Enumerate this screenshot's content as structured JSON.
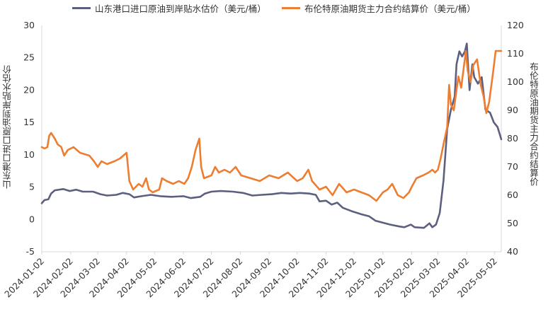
{
  "chart_data": {
    "type": "line",
    "title": "",
    "legend_position": "top",
    "grid": false,
    "x_tick_labels": [
      "2024-01-02",
      "2024-02-02",
      "2024-03-02",
      "2024-04-02",
      "2024-05-02",
      "2024-06-02",
      "2024-07-02",
      "2024-08-02",
      "2024-09-02",
      "2024-10-02",
      "2024-11-02",
      "2024-12-02",
      "2025-01-02",
      "2025-02-02",
      "2025-03-02",
      "2025-04-02",
      "2025-05-02"
    ],
    "x_range": [
      "2024-01-02",
      "2025-05-09"
    ],
    "left_axis": {
      "label": "山东港口进口原油到岸贴水估价",
      "range": [
        -5,
        30
      ],
      "ticks": [
        -5,
        0,
        5,
        10,
        15,
        20,
        25,
        30
      ]
    },
    "right_axis": {
      "label": "布伦特原油期货主力合约结算价",
      "range": [
        40,
        120
      ],
      "ticks": [
        40,
        50,
        60,
        70,
        80,
        90,
        100,
        110,
        120
      ]
    },
    "series": [
      {
        "name": "山东港口进口原油到岸贴水估价（美元/桶）",
        "axis": "left",
        "color": "#5d5f7e",
        "points": [
          [
            "2024-01-02",
            2.5
          ],
          [
            "2024-01-05",
            3.0
          ],
          [
            "2024-01-09",
            3.1
          ],
          [
            "2024-01-12",
            4.0
          ],
          [
            "2024-01-16",
            4.5
          ],
          [
            "2024-01-25",
            4.7
          ],
          [
            "2024-02-01",
            4.4
          ],
          [
            "2024-02-08",
            4.6
          ],
          [
            "2024-02-15",
            4.3
          ],
          [
            "2024-02-26",
            4.3
          ],
          [
            "2024-03-05",
            3.9
          ],
          [
            "2024-03-12",
            3.7
          ],
          [
            "2024-03-22",
            3.8
          ],
          [
            "2024-03-29",
            4.1
          ],
          [
            "2024-04-05",
            3.9
          ],
          [
            "2024-04-10",
            3.4
          ],
          [
            "2024-04-18",
            3.6
          ],
          [
            "2024-04-28",
            3.8
          ],
          [
            "2024-05-08",
            3.6
          ],
          [
            "2024-05-20",
            3.5
          ],
          [
            "2024-06-02",
            3.6
          ],
          [
            "2024-06-10",
            3.3
          ],
          [
            "2024-06-20",
            3.5
          ],
          [
            "2024-06-25",
            4.0
          ],
          [
            "2024-07-02",
            4.3
          ],
          [
            "2024-07-12",
            4.4
          ],
          [
            "2024-07-25",
            4.3
          ],
          [
            "2024-08-05",
            4.1
          ],
          [
            "2024-08-15",
            3.7
          ],
          [
            "2024-08-25",
            3.8
          ],
          [
            "2024-09-05",
            3.9
          ],
          [
            "2024-09-15",
            4.1
          ],
          [
            "2024-09-25",
            4.0
          ],
          [
            "2024-10-05",
            4.1
          ],
          [
            "2024-10-15",
            4.0
          ],
          [
            "2024-10-22",
            3.8
          ],
          [
            "2024-10-26",
            2.8
          ],
          [
            "2024-11-02",
            2.9
          ],
          [
            "2024-11-08",
            2.3
          ],
          [
            "2024-11-14",
            2.6
          ],
          [
            "2024-11-20",
            1.8
          ],
          [
            "2024-12-01",
            1.2
          ],
          [
            "2024-12-10",
            0.8
          ],
          [
            "2024-12-18",
            0.5
          ],
          [
            "2024-12-25",
            -0.2
          ],
          [
            "2025-01-02",
            -0.5
          ],
          [
            "2025-01-10",
            -0.8
          ],
          [
            "2025-01-20",
            -1.1
          ],
          [
            "2025-01-25",
            -1.2
          ],
          [
            "2025-02-01",
            -0.8
          ],
          [
            "2025-02-05",
            -1.2
          ],
          [
            "2025-02-15",
            -1.3
          ],
          [
            "2025-02-21",
            -0.6
          ],
          [
            "2025-02-24",
            -1.2
          ],
          [
            "2025-02-28",
            -0.8
          ],
          [
            "2025-03-04",
            1.0
          ],
          [
            "2025-03-08",
            6.0
          ],
          [
            "2025-03-12",
            14.0
          ],
          [
            "2025-03-16",
            17.0
          ],
          [
            "2025-03-20",
            19.0
          ],
          [
            "2025-03-22",
            24.0
          ],
          [
            "2025-03-25",
            26.0
          ],
          [
            "2025-03-28",
            25.2
          ],
          [
            "2025-03-31",
            26.0
          ],
          [
            "2025-04-02",
            27.2
          ],
          [
            "2025-04-05",
            20.0
          ],
          [
            "2025-04-08",
            24.0
          ],
          [
            "2025-04-10",
            22.0
          ],
          [
            "2025-04-14",
            21.0
          ],
          [
            "2025-04-18",
            22.0
          ],
          [
            "2025-04-22",
            17.0
          ],
          [
            "2025-04-27",
            16.5
          ],
          [
            "2025-05-01",
            15.0
          ],
          [
            "2025-05-05",
            14.3
          ],
          [
            "2025-05-09",
            12.4
          ]
        ]
      },
      {
        "name": "布伦特原油期货主力合约结算价（美元/桶）",
        "axis": "right",
        "color": "#ed7d31",
        "points": [
          [
            "2024-01-02",
            77
          ],
          [
            "2024-01-05",
            76.5
          ],
          [
            "2024-01-08",
            77
          ],
          [
            "2024-01-10",
            81
          ],
          [
            "2024-01-12",
            82
          ],
          [
            "2024-01-16",
            80
          ],
          [
            "2024-01-19",
            78
          ],
          [
            "2024-01-23",
            77
          ],
          [
            "2024-01-26",
            74
          ],
          [
            "2024-01-30",
            76
          ],
          [
            "2024-02-05",
            77
          ],
          [
            "2024-02-12",
            75
          ],
          [
            "2024-02-22",
            74
          ],
          [
            "2024-02-27",
            72
          ],
          [
            "2024-03-02",
            70
          ],
          [
            "2024-03-06",
            72
          ],
          [
            "2024-03-12",
            71
          ],
          [
            "2024-03-20",
            72
          ],
          [
            "2024-03-26",
            73
          ],
          [
            "2024-04-02",
            75
          ],
          [
            "2024-04-05",
            65
          ],
          [
            "2024-04-09",
            62
          ],
          [
            "2024-04-15",
            64
          ],
          [
            "2024-04-19",
            63
          ],
          [
            "2024-04-23",
            66
          ],
          [
            "2024-04-26",
            62
          ],
          [
            "2024-04-30",
            61
          ],
          [
            "2024-05-07",
            62
          ],
          [
            "2024-05-10",
            66
          ],
          [
            "2024-05-15",
            65
          ],
          [
            "2024-05-22",
            64
          ],
          [
            "2024-05-28",
            65
          ],
          [
            "2024-06-03",
            64
          ],
          [
            "2024-06-07",
            66
          ],
          [
            "2024-06-11",
            70
          ],
          [
            "2024-06-15",
            76
          ],
          [
            "2024-06-19",
            80
          ],
          [
            "2024-06-21",
            70
          ],
          [
            "2024-06-24",
            66
          ],
          [
            "2024-07-02",
            67
          ],
          [
            "2024-07-06",
            70
          ],
          [
            "2024-07-10",
            68
          ],
          [
            "2024-07-16",
            69
          ],
          [
            "2024-07-22",
            68
          ],
          [
            "2024-07-28",
            70
          ],
          [
            "2024-08-03",
            67
          ],
          [
            "2024-08-13",
            66
          ],
          [
            "2024-08-23",
            65
          ],
          [
            "2024-09-02",
            67
          ],
          [
            "2024-09-12",
            66
          ],
          [
            "2024-09-22",
            68
          ],
          [
            "2024-10-02",
            65
          ],
          [
            "2024-10-08",
            66
          ],
          [
            "2024-10-14",
            69
          ],
          [
            "2024-10-18",
            65
          ],
          [
            "2024-10-26",
            62
          ],
          [
            "2024-11-02",
            63
          ],
          [
            "2024-11-09",
            60
          ],
          [
            "2024-11-16",
            64
          ],
          [
            "2024-11-24",
            61
          ],
          [
            "2024-12-02",
            62
          ],
          [
            "2024-12-10",
            61
          ],
          [
            "2024-12-18",
            60
          ],
          [
            "2024-12-26",
            58
          ],
          [
            "2025-01-02",
            61
          ],
          [
            "2025-01-07",
            62
          ],
          [
            "2025-01-12",
            64
          ],
          [
            "2025-01-18",
            60
          ],
          [
            "2025-01-24",
            59
          ],
          [
            "2025-01-30",
            61
          ],
          [
            "2025-02-02",
            63
          ],
          [
            "2025-02-07",
            66
          ],
          [
            "2025-02-14",
            67
          ],
          [
            "2025-02-20",
            68
          ],
          [
            "2025-02-24",
            69
          ],
          [
            "2025-02-27",
            68
          ],
          [
            "2025-03-02",
            69
          ],
          [
            "2025-03-05",
            73
          ],
          [
            "2025-03-08",
            78
          ],
          [
            "2025-03-12",
            84
          ],
          [
            "2025-03-14",
            99
          ],
          [
            "2025-03-16",
            92
          ],
          [
            "2025-03-19",
            90
          ],
          [
            "2025-03-24",
            102
          ],
          [
            "2025-03-27",
            98
          ],
          [
            "2025-04-01",
            111
          ],
          [
            "2025-04-03",
            104
          ],
          [
            "2025-04-06",
            100
          ],
          [
            "2025-04-09",
            106
          ],
          [
            "2025-04-13",
            108
          ],
          [
            "2025-04-17",
            99
          ],
          [
            "2025-04-20",
            95
          ],
          [
            "2025-04-23",
            89
          ],
          [
            "2025-04-26",
            93
          ],
          [
            "2025-04-30",
            103
          ],
          [
            "2025-05-03",
            111
          ],
          [
            "2025-05-09",
            111
          ]
        ]
      }
    ]
  }
}
